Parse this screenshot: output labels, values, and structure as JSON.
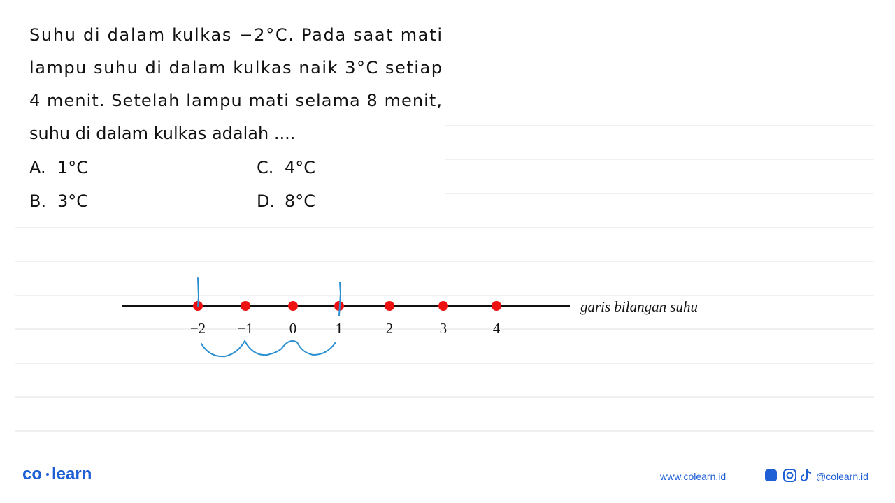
{
  "question": {
    "lines": [
      "Suhu di dalam kulkas −2°C. Pada saat mati",
      "lampu suhu di dalam kulkas naik 3°C setiap",
      "4 menit. Setelah lampu mati selama 8 menit,",
      "suhu di dalam kulkas adalah ...."
    ],
    "options": [
      {
        "label": "A.",
        "text": "1°C"
      },
      {
        "label": "C.",
        "text": "4°C"
      },
      {
        "label": "B.",
        "text": "3°C"
      },
      {
        "label": "D.",
        "text": "8°C"
      }
    ]
  },
  "number_line": {
    "labels": [
      "−2",
      "−1",
      "0",
      "1",
      "2",
      "3",
      "4"
    ],
    "caption": "garis bilangan suhu"
  },
  "footer": {
    "logo_left": "co",
    "logo_right": "learn",
    "website": "www.colearn.id",
    "handle": "@colearn.id"
  }
}
